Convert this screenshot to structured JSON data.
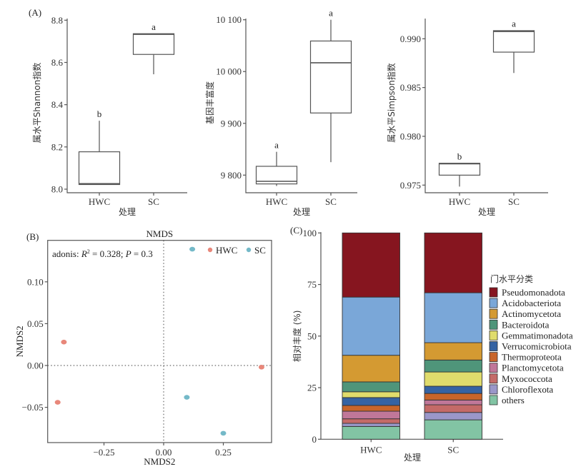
{
  "figure": {
    "panel_labels": [
      "(A)",
      "(B)",
      "(C)"
    ]
  },
  "chart_data": [
    {
      "type": "box",
      "panel": "A1",
      "title": "",
      "xlabel": "处理",
      "ylabel": "属水平Shannon指数",
      "categories": [
        "HWC",
        "SC"
      ],
      "ylim": [
        7.985,
        8.8
      ],
      "yticks": [
        8.0,
        8.2,
        8.4,
        8.6,
        8.8
      ],
      "ytick_labels": [
        "8.0",
        "8.2",
        "8.4",
        "8.6",
        "8.8"
      ],
      "boxes": [
        {
          "group": "HWC",
          "min": 8.022,
          "q1": 8.022,
          "median": 8.026,
          "q3": 8.177,
          "max": 8.324,
          "letter": "b"
        },
        {
          "group": "SC",
          "min": 8.544,
          "q1": 8.638,
          "median": 8.733,
          "q3": 8.736,
          "max": 8.737,
          "letter": "a"
        }
      ]
    },
    {
      "type": "box",
      "panel": "A2",
      "title": "",
      "xlabel": "处理",
      "ylabel": "基因丰富度",
      "categories": [
        "HWC",
        "SC"
      ],
      "ylim": [
        9765,
        10100
      ],
      "yticks": [
        9800,
        9900,
        10000,
        10100
      ],
      "ytick_labels": [
        "9 800",
        "9 900",
        "10 000",
        "10 100"
      ],
      "boxes": [
        {
          "group": "HWC",
          "min": 9779,
          "q1": 9783,
          "median": 9788,
          "q3": 9817,
          "max": 9845,
          "letter": "a"
        },
        {
          "group": "SC",
          "min": 9825,
          "q1": 9920,
          "median": 10017,
          "q3": 10059,
          "max": 10100,
          "letter": "a"
        }
      ]
    },
    {
      "type": "box",
      "panel": "A3",
      "title": "",
      "xlabel": "处理",
      "ylabel": "属水平Simpson指数",
      "categories": [
        "HWC",
        "SC"
      ],
      "ylim": [
        0.9743,
        0.9922
      ],
      "yticks": [
        0.975,
        0.98,
        0.985,
        0.99
      ],
      "ytick_labels": [
        "0.975",
        "0.980",
        "0.985",
        "0.990"
      ],
      "boxes": [
        {
          "group": "HWC",
          "min": 0.97485,
          "q1": 0.97602,
          "median": 0.97718,
          "q3": 0.97724,
          "max": 0.97726,
          "letter": "b"
        },
        {
          "group": "SC",
          "min": 0.98649,
          "q1": 0.98863,
          "median": 0.99075,
          "q3": 0.99083,
          "max": 0.99085,
          "letter": "a"
        }
      ]
    },
    {
      "type": "scatter",
      "panel": "B",
      "title": "NMDS",
      "xlabel": "NMDS2",
      "ylabel": "NMDS2",
      "annotation": {
        "prefix": "adonis: ",
        "r_label": "R",
        "r_sup": "2",
        "r_value": " = 0.328; ",
        "p_label": "P",
        "p_value": " = 0.3"
      },
      "xlim": [
        -0.49,
        0.46
      ],
      "ylim": [
        -0.093,
        0.149
      ],
      "xticks": [
        -0.25,
        0.0,
        0.25
      ],
      "xtick_labels": [
        "−0.25",
        "0.00",
        "0.25"
      ],
      "yticks": [
        -0.05,
        0.0,
        0.05,
        0.1
      ],
      "ytick_labels": [
        "−0.05",
        "0.00",
        "0.05",
        "0.10"
      ],
      "reference_lines": {
        "x": 0,
        "y": 0,
        "style": "dotted"
      },
      "legend": {
        "position": "top-right",
        "entries": [
          "HWC",
          "SC"
        ]
      },
      "series": [
        {
          "name": "HWC",
          "color": "#e8877a",
          "points": [
            [
              -0.418,
              0.028
            ],
            [
              -0.444,
              -0.044
            ],
            [
              0.41,
              -0.002
            ]
          ]
        },
        {
          "name": "SC",
          "color": "#74b9c8",
          "points": [
            [
              0.12,
              0.139
            ],
            [
              0.097,
              -0.038
            ],
            [
              0.25,
              -0.081
            ]
          ]
        }
      ]
    },
    {
      "type": "stacked-bar",
      "panel": "C",
      "title": "",
      "xlabel": "处理",
      "ylabel": "相对丰度 (%)",
      "categories": [
        "HWC",
        "SC"
      ],
      "ylim": [
        0,
        100
      ],
      "yticks": [
        0,
        25,
        50,
        75,
        100
      ],
      "ytick_labels": [
        "0",
        "25",
        "50",
        "75",
        "100"
      ],
      "legend": {
        "title": "门水平分类",
        "position": "right"
      },
      "series": [
        {
          "name": "others",
          "color": "#82c4a4",
          "values": [
            6.2,
            9.4
          ]
        },
        {
          "name": "Chloroflexota",
          "color": "#9a97c9",
          "values": [
            1.5,
            3.6
          ]
        },
        {
          "name": "Myxococcota",
          "color": "#c46a68",
          "values": [
            2.2,
            3.7
          ]
        },
        {
          "name": "Planctomycetota",
          "color": "#c07799",
          "values": [
            3.7,
            2.3
          ]
        },
        {
          "name": "Thermoproteota",
          "color": "#c8652a",
          "values": [
            2.8,
            3.2
          ]
        },
        {
          "name": "Verrucomicrobiota",
          "color": "#3563a3",
          "values": [
            3.8,
            3.5
          ]
        },
        {
          "name": "Gemmatimonadota",
          "color": "#e0dc6c",
          "values": [
            2.8,
            6.9
          ]
        },
        {
          "name": "Bacteroidota",
          "color": "#4f957a",
          "values": [
            4.8,
            5.8
          ]
        },
        {
          "name": "Actinomycetota",
          "color": "#d49a32",
          "values": [
            12.9,
            8.4
          ]
        },
        {
          "name": "Acidobacteriota",
          "color": "#7aa7d8",
          "values": [
            28.2,
            24.2
          ]
        },
        {
          "name": "Pseudomonadota",
          "color": "#86151f",
          "values": [
            31.1,
            29.0
          ]
        }
      ]
    }
  ]
}
